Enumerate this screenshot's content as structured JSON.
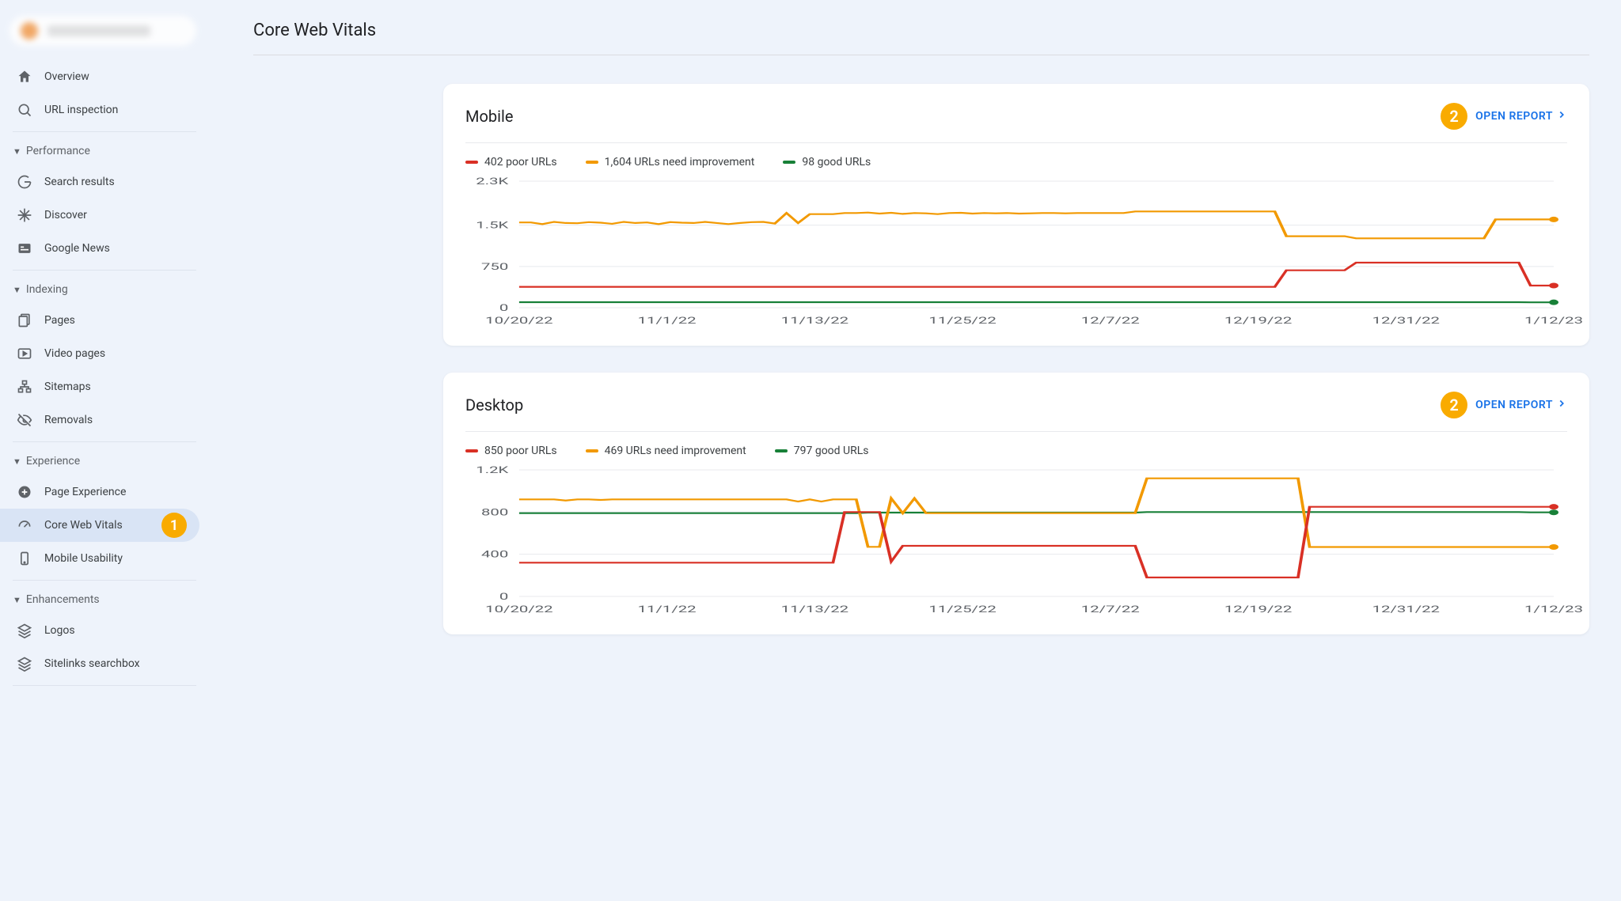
{
  "page": {
    "title": "Core Web Vitals"
  },
  "callouts": {
    "sidebar": "1",
    "open_report": "2"
  },
  "sidebar": {
    "items": [
      {
        "label": "Overview",
        "icon": "home"
      },
      {
        "label": "URL inspection",
        "icon": "search"
      }
    ],
    "sections": [
      {
        "title": "Performance",
        "items": [
          {
            "label": "Search results",
            "icon": "g"
          },
          {
            "label": "Discover",
            "icon": "asterisk"
          },
          {
            "label": "Google News",
            "icon": "news"
          }
        ]
      },
      {
        "title": "Indexing",
        "items": [
          {
            "label": "Pages",
            "icon": "pages"
          },
          {
            "label": "Video pages",
            "icon": "video"
          },
          {
            "label": "Sitemaps",
            "icon": "sitemap"
          },
          {
            "label": "Removals",
            "icon": "hide"
          }
        ]
      },
      {
        "title": "Experience",
        "items": [
          {
            "label": "Page Experience",
            "icon": "plus-circle"
          },
          {
            "label": "Core Web Vitals",
            "icon": "speed",
            "active": true,
            "callout": "1"
          },
          {
            "label": "Mobile Usability",
            "icon": "phone"
          }
        ]
      },
      {
        "title": "Enhancements",
        "items": [
          {
            "label": "Logos",
            "icon": "layers"
          },
          {
            "label": "Sitelinks searchbox",
            "icon": "layers"
          }
        ]
      }
    ]
  },
  "colors": {
    "poor": "#d93025",
    "needs": "#f29900",
    "good": "#188038",
    "grid": "#e8eaed",
    "axis_text": "#5f6368",
    "link": "#1a73e8",
    "badge": "#f9ab00"
  },
  "charts": [
    {
      "title": "Mobile",
      "open_label": "OPEN REPORT",
      "legend": {
        "poor": "402 poor URLs",
        "needs": "1,604 URLs need improvement",
        "good": "98 good URLs"
      },
      "y": {
        "max": 2300,
        "ticks": [
          0,
          750,
          1500,
          2300
        ],
        "labels": [
          "0",
          "750",
          "1.5K",
          "2.3K"
        ]
      },
      "x": {
        "labels": [
          "10/20/22",
          "11/1/22",
          "11/13/22",
          "11/25/22",
          "12/7/22",
          "12/19/22",
          "12/31/22",
          "1/12/23"
        ],
        "count": 90
      },
      "series": {
        "poor": [
          380,
          380,
          380,
          380,
          380,
          380,
          380,
          380,
          380,
          380,
          380,
          380,
          380,
          380,
          380,
          380,
          380,
          380,
          380,
          380,
          380,
          380,
          380,
          380,
          380,
          380,
          380,
          380,
          380,
          380,
          380,
          380,
          380,
          380,
          380,
          380,
          380,
          380,
          380,
          380,
          380,
          380,
          380,
          380,
          380,
          380,
          380,
          380,
          380,
          380,
          380,
          380,
          380,
          380,
          380,
          380,
          380,
          380,
          380,
          380,
          380,
          380,
          380,
          380,
          380,
          380,
          680,
          680,
          680,
          680,
          680,
          680,
          820,
          820,
          820,
          820,
          820,
          820,
          820,
          820,
          820,
          820,
          820,
          820,
          820,
          820,
          820,
          402,
          402,
          402
        ],
        "needs": [
          1550,
          1550,
          1520,
          1560,
          1540,
          1535,
          1555,
          1545,
          1525,
          1560,
          1540,
          1550,
          1520,
          1555,
          1545,
          1540,
          1560,
          1540,
          1520,
          1540,
          1555,
          1560,
          1530,
          1720,
          1540,
          1700,
          1700,
          1700,
          1720,
          1720,
          1730,
          1710,
          1725,
          1705,
          1720,
          1715,
          1700,
          1720,
          1725,
          1710,
          1720,
          1715,
          1720,
          1710,
          1715,
          1720,
          1720,
          1715,
          1720,
          1720,
          1720,
          1720,
          1720,
          1750,
          1750,
          1750,
          1750,
          1750,
          1750,
          1750,
          1750,
          1750,
          1750,
          1750,
          1750,
          1750,
          1300,
          1300,
          1300,
          1300,
          1300,
          1300,
          1260,
          1260,
          1260,
          1260,
          1260,
          1260,
          1260,
          1260,
          1260,
          1260,
          1260,
          1260,
          1604,
          1604,
          1604,
          1604,
          1604,
          1604
        ],
        "good": [
          100,
          100,
          100,
          100,
          100,
          100,
          100,
          100,
          100,
          100,
          100,
          100,
          100,
          100,
          100,
          100,
          100,
          100,
          100,
          100,
          100,
          100,
          100,
          100,
          100,
          100,
          100,
          100,
          100,
          100,
          100,
          100,
          100,
          100,
          100,
          100,
          100,
          100,
          100,
          100,
          100,
          100,
          100,
          100,
          100,
          100,
          100,
          100,
          100,
          100,
          100,
          100,
          100,
          100,
          100,
          100,
          100,
          100,
          100,
          100,
          100,
          100,
          100,
          100,
          100,
          100,
          100,
          100,
          100,
          100,
          100,
          100,
          100,
          100,
          100,
          100,
          100,
          100,
          100,
          100,
          100,
          100,
          100,
          100,
          100,
          100,
          100,
          98,
          98,
          98
        ]
      }
    },
    {
      "title": "Desktop",
      "open_label": "OPEN REPORT",
      "legend": {
        "poor": "850 poor URLs",
        "needs": "469 URLs need improvement",
        "good": "797 good URLs"
      },
      "y": {
        "max": 1200,
        "ticks": [
          0,
          400,
          800,
          1200
        ],
        "labels": [
          "0",
          "400",
          "800",
          "1.2K"
        ]
      },
      "x": {
        "labels": [
          "10/20/22",
          "11/1/22",
          "11/13/22",
          "11/25/22",
          "12/7/22",
          "12/19/22",
          "12/31/22",
          "1/12/23"
        ],
        "count": 90
      },
      "series": {
        "poor": [
          320,
          320,
          320,
          320,
          320,
          320,
          320,
          320,
          320,
          320,
          320,
          320,
          320,
          320,
          320,
          320,
          320,
          320,
          320,
          320,
          320,
          320,
          320,
          320,
          320,
          320,
          320,
          320,
          800,
          800,
          800,
          800,
          330,
          480,
          480,
          480,
          480,
          480,
          480,
          480,
          480,
          480,
          480,
          480,
          480,
          480,
          480,
          480,
          480,
          480,
          480,
          480,
          480,
          480,
          180,
          180,
          180,
          180,
          180,
          180,
          180,
          180,
          180,
          180,
          180,
          180,
          180,
          180,
          850,
          850,
          850,
          850,
          850,
          850,
          850,
          850,
          850,
          850,
          850,
          850,
          850,
          850,
          850,
          850,
          850,
          850,
          850,
          850,
          850,
          850
        ],
        "needs": [
          920,
          920,
          920,
          920,
          910,
          920,
          920,
          915,
          920,
          920,
          920,
          920,
          920,
          920,
          920,
          920,
          920,
          920,
          920,
          920,
          920,
          920,
          920,
          920,
          900,
          920,
          900,
          920,
          920,
          920,
          470,
          470,
          930,
          790,
          930,
          790,
          790,
          790,
          790,
          790,
          790,
          790,
          790,
          790,
          790,
          790,
          790,
          790,
          790,
          790,
          790,
          790,
          790,
          790,
          1120,
          1120,
          1120,
          1120,
          1120,
          1120,
          1120,
          1120,
          1120,
          1120,
          1120,
          1120,
          1120,
          1120,
          469,
          469,
          469,
          469,
          469,
          469,
          469,
          469,
          469,
          469,
          469,
          469,
          469,
          469,
          469,
          469,
          469,
          469,
          469,
          469,
          469,
          469
        ],
        "good": [
          790,
          790,
          790,
          790,
          790,
          790,
          790,
          790,
          790,
          790,
          790,
          790,
          790,
          790,
          790,
          790,
          790,
          790,
          790,
          790,
          790,
          790,
          790,
          790,
          790,
          790,
          790,
          790,
          790,
          790,
          795,
          795,
          795,
          795,
          795,
          795,
          795,
          795,
          795,
          795,
          795,
          795,
          795,
          795,
          795,
          795,
          795,
          795,
          795,
          795,
          795,
          795,
          795,
          795,
          800,
          800,
          800,
          800,
          800,
          800,
          800,
          800,
          800,
          800,
          800,
          800,
          800,
          800,
          800,
          800,
          800,
          800,
          800,
          800,
          800,
          800,
          800,
          800,
          800,
          800,
          800,
          800,
          800,
          800,
          800,
          800,
          800,
          797,
          797,
          797
        ]
      }
    }
  ]
}
